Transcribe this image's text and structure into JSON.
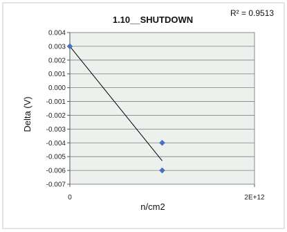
{
  "chart_data": {
    "type": "scatter",
    "title": "1.10__SHUTDOWN",
    "xlabel": "n/cm2",
    "ylabel": "Delta (V)",
    "xlim": [
      0,
      2000000000000
    ],
    "ylim": [
      -0.007,
      0.004
    ],
    "y_ticks": [
      "0.004",
      "0.003",
      "0.002",
      "0.001",
      "0.000",
      "-0.001",
      "-0.002",
      "-0.003",
      "-0.004",
      "-0.005",
      "-0.006",
      "-0.007"
    ],
    "x_ticks": [
      "0",
      "2E+12"
    ],
    "points": [
      {
        "x": 0,
        "y": 0.003
      },
      {
        "x": 1000000000000,
        "y": -0.004
      },
      {
        "x": 1000000000000,
        "y": -0.006
      }
    ],
    "trendline": {
      "x": [
        0,
        1000000000000
      ],
      "y": [
        0.003,
        -0.0053
      ],
      "r2_label": "R² = 0.9513"
    },
    "grid": true,
    "colors": {
      "marker": "#4a72c4",
      "plot_bg": "#edf1ee",
      "grid": "#7f7f7f"
    }
  }
}
